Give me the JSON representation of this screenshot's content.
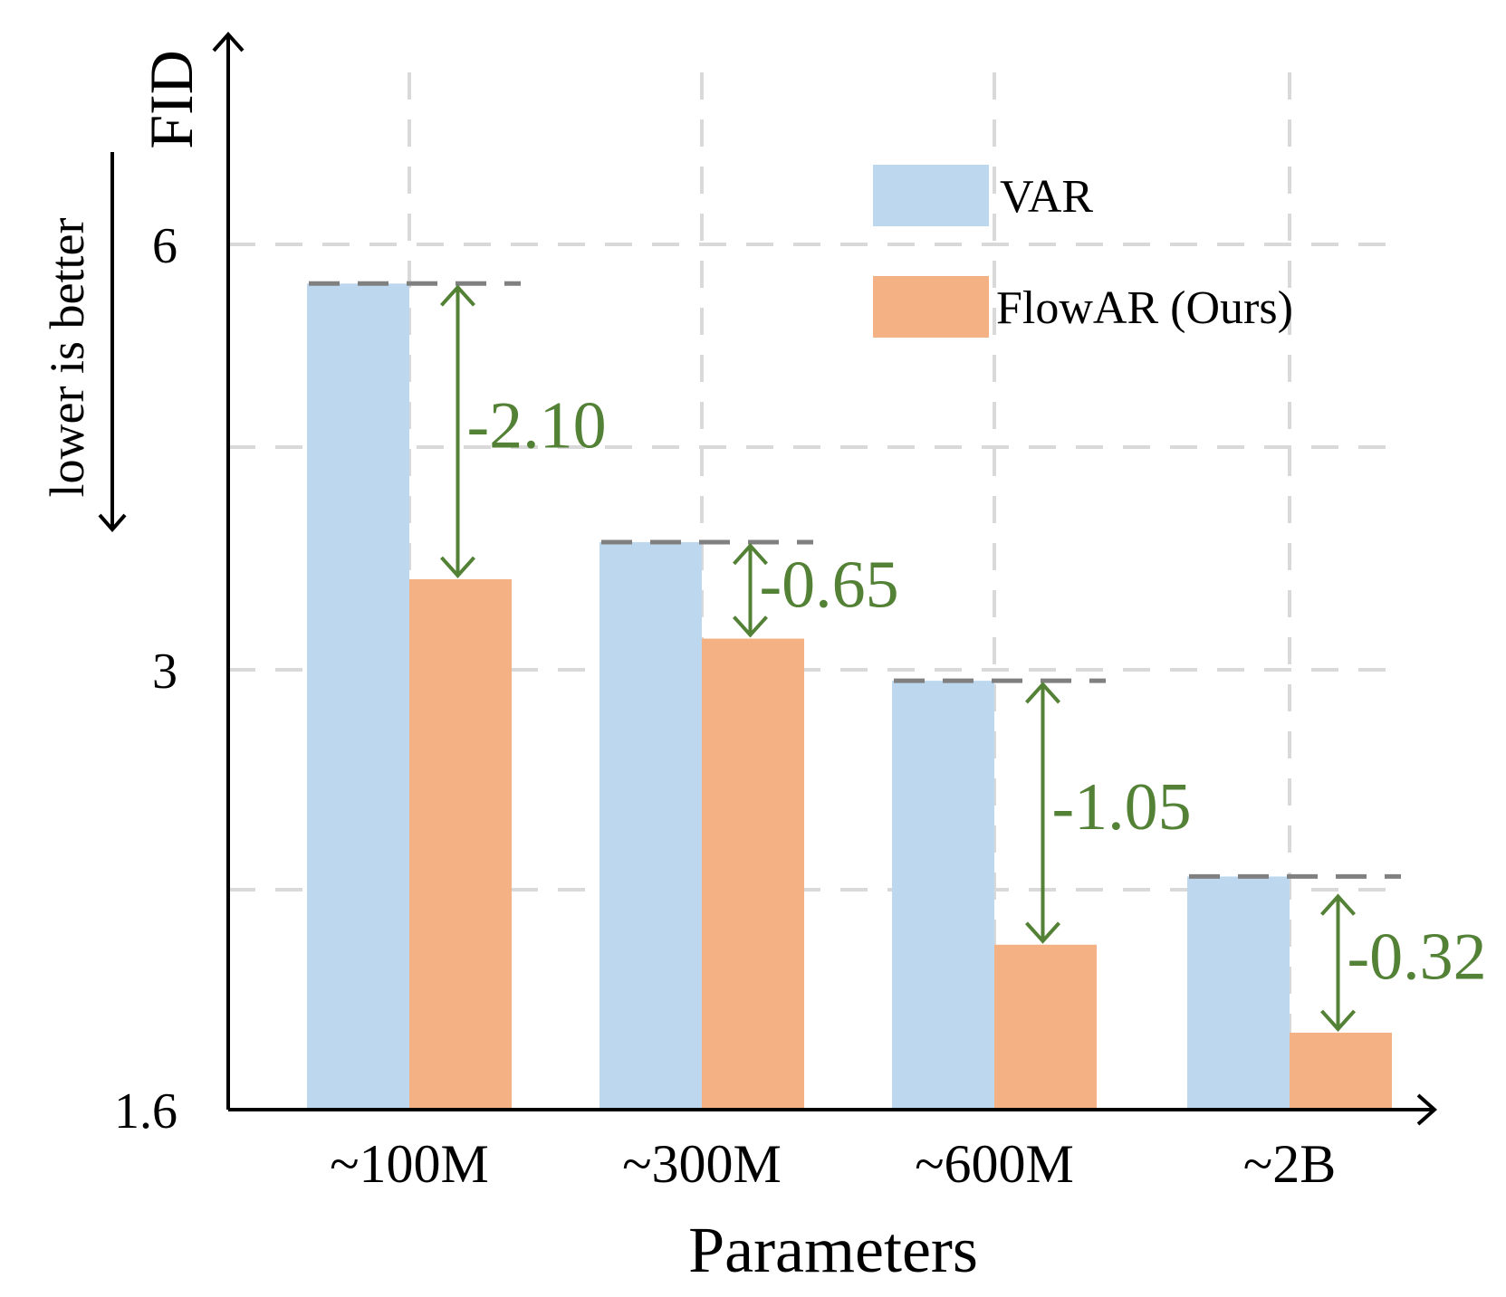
{
  "chart_data": {
    "type": "bar",
    "categories": [
      "~100M",
      "~300M",
      "~600M",
      "~2B"
    ],
    "series": [
      {
        "name": "VAR",
        "values": [
          5.71,
          3.86,
          2.95,
          2.06
        ]
      },
      {
        "name": "FlowAR (Ours)",
        "values": [
          3.61,
          3.21,
          1.9,
          1.74
        ]
      }
    ],
    "differences": [
      "-2.10",
      "-0.65",
      "-1.05",
      "-0.32"
    ],
    "ylabel": "FID",
    "ylabel_note": "lower is better",
    "xlabel": "Parameters",
    "yticks": [
      "6",
      "3",
      "1.6"
    ],
    "ylim": [
      1.6,
      6.5
    ],
    "grid": true,
    "legend": "top-right"
  },
  "colors": {
    "VAR": "#bdd7ee",
    "FlowAR": "#f4b183",
    "difference": "#538135",
    "grid": "#d9d9d9",
    "reference": "#808080",
    "axis": "#000000"
  }
}
